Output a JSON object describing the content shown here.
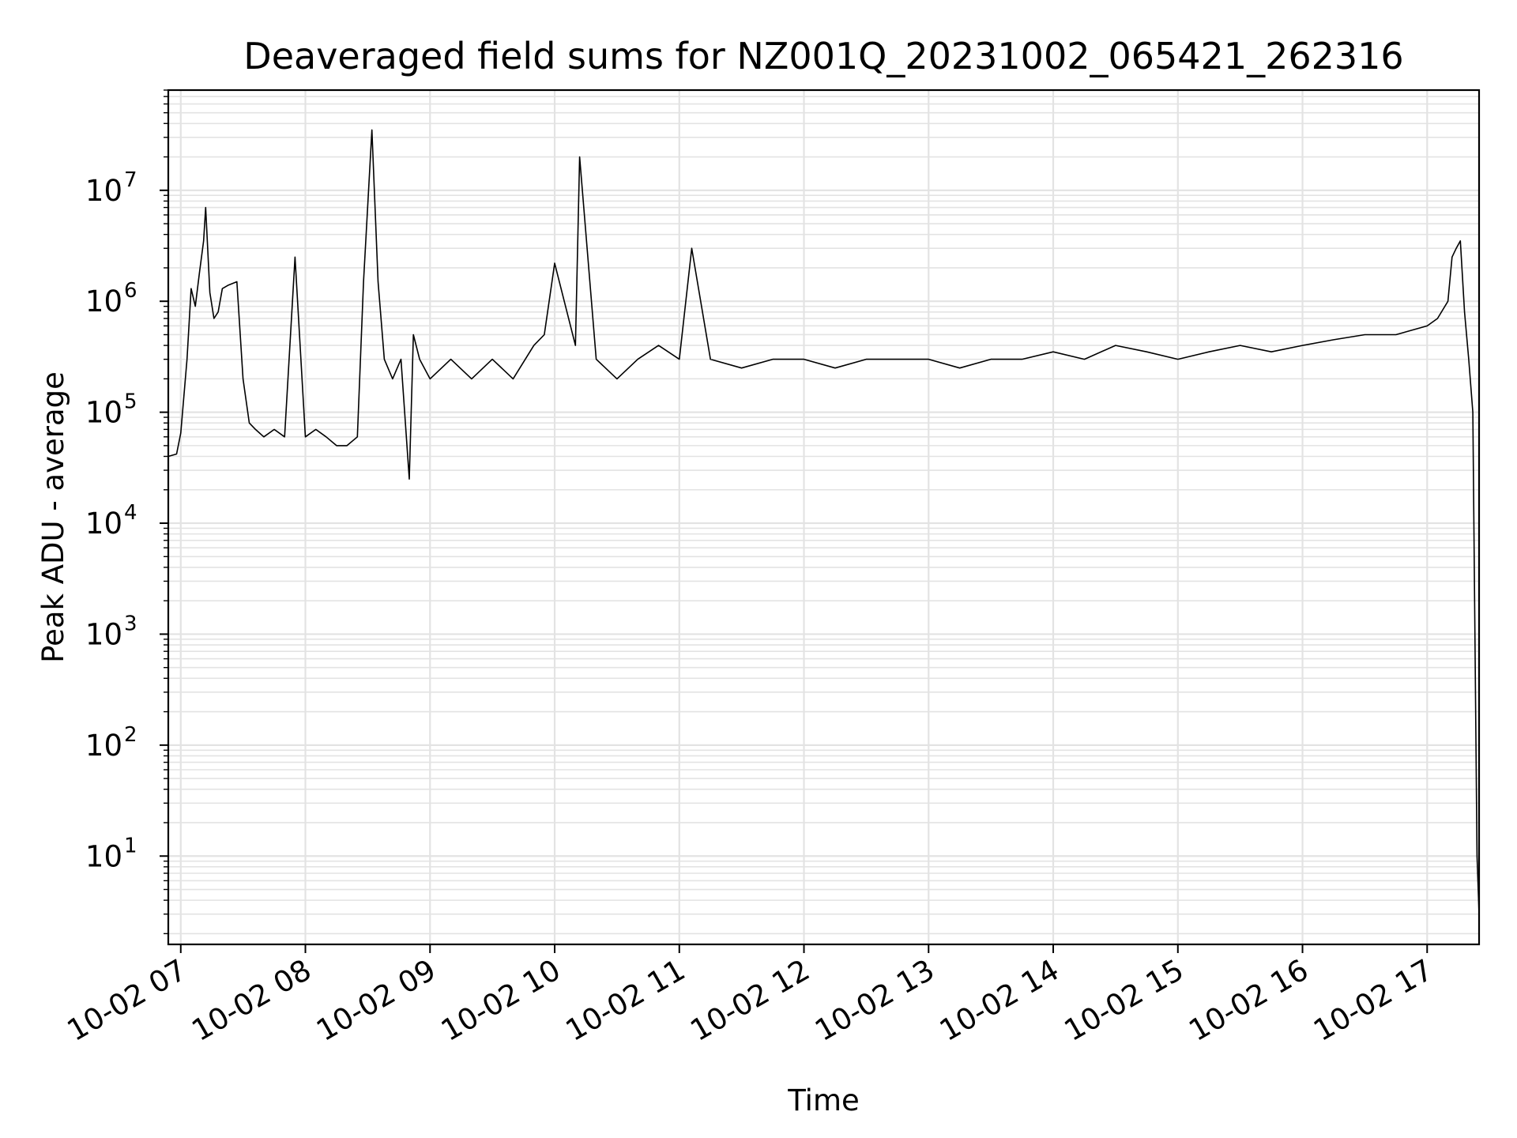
{
  "chart_data": {
    "type": "line",
    "title": "Deaveraged field sums for NZ001Q_20231002_065421_262316",
    "xlabel": "Time",
    "ylabel": "Peak ADU - average",
    "yscale": "log",
    "ylim": [
      1.6,
      80000000
    ],
    "xlim": [
      "2023-10-02 06:54",
      "2023-10-02 17:25"
    ],
    "grid": true,
    "line_color": "#000000",
    "grid_color": "#e3e3e3",
    "x_ticks": [
      {
        "value": "2023-10-02 07:00",
        "label": "10-02 07"
      },
      {
        "value": "2023-10-02 08:00",
        "label": "10-02 08"
      },
      {
        "value": "2023-10-02 09:00",
        "label": "10-02 09"
      },
      {
        "value": "2023-10-02 10:00",
        "label": "10-02 10"
      },
      {
        "value": "2023-10-02 11:00",
        "label": "10-02 11"
      },
      {
        "value": "2023-10-02 12:00",
        "label": "10-02 12"
      },
      {
        "value": "2023-10-02 13:00",
        "label": "10-02 13"
      },
      {
        "value": "2023-10-02 14:00",
        "label": "10-02 14"
      },
      {
        "value": "2023-10-02 15:00",
        "label": "10-02 15"
      },
      {
        "value": "2023-10-02 16:00",
        "label": "10-02 16"
      },
      {
        "value": "2023-10-02 17:00",
        "label": "10-02 17"
      }
    ],
    "y_ticks": [
      {
        "value": 10,
        "base": "10",
        "exp": "1"
      },
      {
        "value": 100,
        "base": "10",
        "exp": "2"
      },
      {
        "value": 1000,
        "base": "10",
        "exp": "3"
      },
      {
        "value": 10000,
        "base": "10",
        "exp": "4"
      },
      {
        "value": 100000,
        "base": "10",
        "exp": "5"
      },
      {
        "value": 1000000,
        "base": "10",
        "exp": "6"
      },
      {
        "value": 10000000,
        "base": "10",
        "exp": "7"
      }
    ],
    "series": [
      {
        "x": [
          "2023-10-02 06:54",
          "2023-10-02 06:58",
          "2023-10-02 07:00",
          "2023-10-02 07:03",
          "2023-10-02 07:05",
          "2023-10-02 07:07",
          "2023-10-02 07:09",
          "2023-10-02 07:11",
          "2023-10-02 07:12",
          "2023-10-02 07:14",
          "2023-10-02 07:16",
          "2023-10-02 07:18",
          "2023-10-02 07:20",
          "2023-10-02 07:23",
          "2023-10-02 07:27",
          "2023-10-02 07:30",
          "2023-10-02 07:33",
          "2023-10-02 07:36",
          "2023-10-02 07:40",
          "2023-10-02 07:45",
          "2023-10-02 07:50",
          "2023-10-02 07:55",
          "2023-10-02 08:00",
          "2023-10-02 08:05",
          "2023-10-02 08:10",
          "2023-10-02 08:15",
          "2023-10-02 08:20",
          "2023-10-02 08:25",
          "2023-10-02 08:28",
          "2023-10-02 08:32",
          "2023-10-02 08:35",
          "2023-10-02 08:38",
          "2023-10-02 08:42",
          "2023-10-02 08:46",
          "2023-10-02 08:50",
          "2023-10-02 08:52",
          "2023-10-02 08:55",
          "2023-10-02 09:00",
          "2023-10-02 09:10",
          "2023-10-02 09:20",
          "2023-10-02 09:30",
          "2023-10-02 09:40",
          "2023-10-02 09:50",
          "2023-10-02 09:55",
          "2023-10-02 10:00",
          "2023-10-02 10:10",
          "2023-10-02 10:12",
          "2023-10-02 10:20",
          "2023-10-02 10:30",
          "2023-10-02 10:40",
          "2023-10-02 10:50",
          "2023-10-02 11:00",
          "2023-10-02 11:06",
          "2023-10-02 11:15",
          "2023-10-02 11:30",
          "2023-10-02 11:45",
          "2023-10-02 12:00",
          "2023-10-02 12:15",
          "2023-10-02 12:30",
          "2023-10-02 12:45",
          "2023-10-02 13:00",
          "2023-10-02 13:15",
          "2023-10-02 13:30",
          "2023-10-02 13:45",
          "2023-10-02 14:00",
          "2023-10-02 14:15",
          "2023-10-02 14:30",
          "2023-10-02 14:45",
          "2023-10-02 15:00",
          "2023-10-02 15:15",
          "2023-10-02 15:30",
          "2023-10-02 15:45",
          "2023-10-02 16:00",
          "2023-10-02 16:15",
          "2023-10-02 16:30",
          "2023-10-02 16:45",
          "2023-10-02 17:00",
          "2023-10-02 17:05",
          "2023-10-02 17:10",
          "2023-10-02 17:12",
          "2023-10-02 17:14",
          "2023-10-02 17:16",
          "2023-10-02 17:18",
          "2023-10-02 17:20",
          "2023-10-02 17:22",
          "2023-10-02 17:24",
          "2023-10-02 17:25"
        ],
        "y": [
          40000,
          42000,
          65000,
          300000,
          1300000,
          900000,
          1800000,
          3500000,
          7000000,
          1200000,
          700000,
          800000,
          1300000,
          1400000,
          1500000,
          200000,
          80000,
          70000,
          60000,
          70000,
          60000,
          2500000,
          60000,
          70000,
          60000,
          50000,
          50000,
          60000,
          1500000,
          35000000,
          1500000,
          300000,
          200000,
          300000,
          25000,
          500000,
          300000,
          200000,
          300000,
          200000,
          300000,
          200000,
          400000,
          500000,
          2200000,
          400000,
          20000000,
          300000,
          200000,
          300000,
          400000,
          300000,
          3000000,
          300000,
          250000,
          300000,
          300000,
          250000,
          300000,
          300000,
          300000,
          250000,
          300000,
          300000,
          350000,
          300000,
          400000,
          350000,
          300000,
          350000,
          400000,
          350000,
          400000,
          450000,
          500000,
          500000,
          600000,
          700000,
          1000000,
          2500000,
          3000000,
          3500000,
          800000,
          300000,
          100000,
          10,
          3
        ]
      }
    ]
  }
}
